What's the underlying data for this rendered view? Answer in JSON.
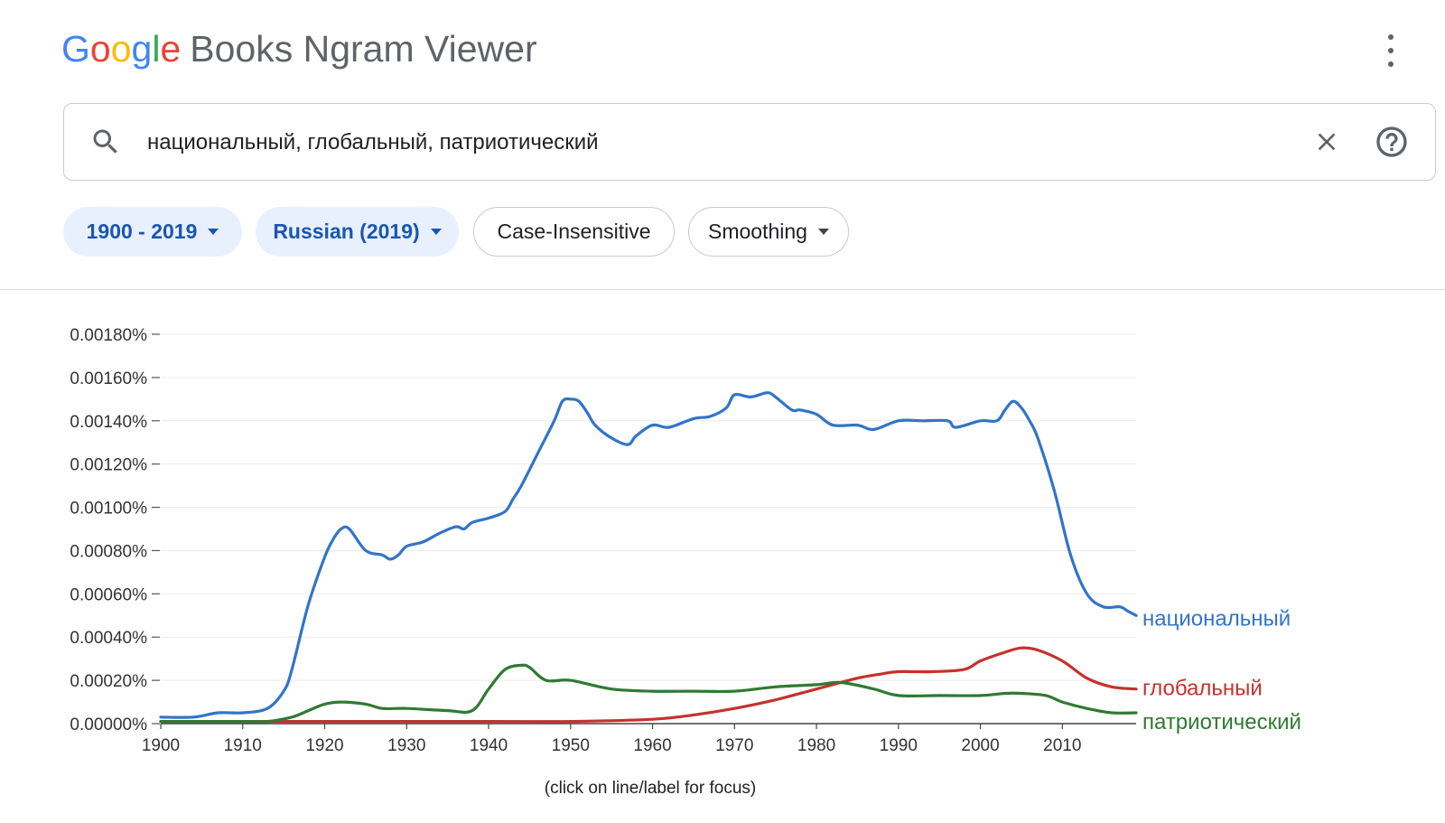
{
  "header": {
    "logo_letters": [
      {
        "ch": "G",
        "color": "#4285F4"
      },
      {
        "ch": "o",
        "color": "#EA4335"
      },
      {
        "ch": "o",
        "color": "#FBBC05"
      },
      {
        "ch": "g",
        "color": "#4285F4"
      },
      {
        "ch": "l",
        "color": "#34A853"
      },
      {
        "ch": "e",
        "color": "#EA4335"
      }
    ],
    "product_name": "Books Ngram Viewer",
    "menu_icon": "more-vert-icon"
  },
  "search": {
    "query": "национальный, глобальный, патриотический",
    "search_icon": "search-icon",
    "clear_icon": "close-icon",
    "help_icon": "help-icon"
  },
  "filters": {
    "year_range": "1900 - 2019",
    "corpus": "Russian (2019)",
    "case": "Case-Insensitive",
    "smoothing": "Smoothing"
  },
  "chart_caption": "(click on line/label for focus)",
  "chart_data": {
    "type": "line",
    "xlabel": "",
    "ylabel": "",
    "xlim": [
      1900,
      2019
    ],
    "ylim": [
      0,
      0.0018
    ],
    "x_ticks": [
      "1900",
      "1910",
      "1920",
      "1930",
      "1940",
      "1950",
      "1960",
      "1970",
      "1980",
      "1990",
      "2000",
      "2010"
    ],
    "y_ticks": [
      "0.00000%",
      "0.00020%",
      "0.00040%",
      "0.00060%",
      "0.00080%",
      "0.00100%",
      "0.00120%",
      "0.00140%",
      "0.00160%",
      "0.00180%"
    ],
    "grid": "horizontal",
    "legend": "labels at line ends (right)",
    "series": [
      {
        "name": "национальный",
        "color": "#3274c8",
        "x": [
          1900,
          1904,
          1907,
          1910,
          1913,
          1915,
          1916,
          1918,
          1920,
          1921,
          1922,
          1923,
          1925,
          1927,
          1928,
          1929,
          1930,
          1932,
          1934,
          1936,
          1937,
          1938,
          1940,
          1942,
          1943,
          1944,
          1946,
          1948,
          1949,
          1950,
          1951,
          1952,
          1953,
          1955,
          1957,
          1958,
          1960,
          1962,
          1965,
          1967,
          1969,
          1970,
          1972,
          1974,
          1975,
          1977,
          1978,
          1980,
          1982,
          1985,
          1987,
          1990,
          1993,
          1996,
          1997,
          2000,
          2002,
          2003,
          2004,
          2005,
          2006,
          2007,
          2009,
          2011,
          2013,
          2015,
          2017,
          2018,
          2019
        ],
        "y": [
          3e-05,
          3e-05,
          5e-05,
          5e-05,
          7e-05,
          0.00015,
          0.00025,
          0.00055,
          0.00077,
          0.00085,
          0.0009,
          0.0009,
          0.0008,
          0.00078,
          0.00076,
          0.00078,
          0.00082,
          0.00084,
          0.00088,
          0.00091,
          0.0009,
          0.00093,
          0.00095,
          0.00098,
          0.00104,
          0.0011,
          0.00125,
          0.0014,
          0.00149,
          0.0015,
          0.00149,
          0.00144,
          0.00138,
          0.00132,
          0.00129,
          0.00133,
          0.00138,
          0.00137,
          0.00141,
          0.00142,
          0.00146,
          0.00152,
          0.00151,
          0.00153,
          0.00151,
          0.00145,
          0.00145,
          0.00143,
          0.00138,
          0.00138,
          0.00136,
          0.0014,
          0.0014,
          0.0014,
          0.00137,
          0.0014,
          0.0014,
          0.00145,
          0.00149,
          0.00146,
          0.0014,
          0.00132,
          0.00108,
          0.00078,
          0.0006,
          0.00054,
          0.00054,
          0.00052,
          0.0005
        ]
      },
      {
        "name": "глобальный",
        "color": "#c5322c",
        "x": [
          1900,
          1920,
          1940,
          1950,
          1960,
          1965,
          1970,
          1975,
          1980,
          1985,
          1988,
          1990,
          1994,
          1998,
          2000,
          2003,
          2005,
          2007,
          2010,
          2013,
          2016,
          2019
        ],
        "y": [
          1e-05,
          1e-05,
          1e-05,
          1e-05,
          2e-05,
          4e-05,
          7e-05,
          0.00011,
          0.00016,
          0.00021,
          0.00023,
          0.00024,
          0.00024,
          0.00025,
          0.00029,
          0.00033,
          0.00035,
          0.00034,
          0.00029,
          0.00021,
          0.00017,
          0.00016
        ]
      },
      {
        "name": "патриотический",
        "color": "#2f7a32",
        "x": [
          1900,
          1910,
          1913,
          1916,
          1918,
          1920,
          1922,
          1925,
          1927,
          1930,
          1935,
          1938,
          1940,
          1942,
          1944,
          1945,
          1947,
          1950,
          1955,
          1960,
          1965,
          1970,
          1975,
          1980,
          1983,
          1987,
          1990,
          1995,
          2000,
          2003,
          2005,
          2008,
          2010,
          2013,
          2016,
          2019
        ],
        "y": [
          1e-05,
          1e-05,
          1e-05,
          3e-05,
          6e-05,
          9e-05,
          0.0001,
          9e-05,
          7e-05,
          7e-05,
          6e-05,
          6e-05,
          0.00016,
          0.00025,
          0.00027,
          0.00026,
          0.0002,
          0.0002,
          0.00016,
          0.00015,
          0.00015,
          0.00015,
          0.00017,
          0.00018,
          0.00019,
          0.00016,
          0.00013,
          0.00013,
          0.00013,
          0.00014,
          0.00014,
          0.00013,
          0.0001,
          7e-05,
          5e-05,
          5e-05
        ]
      }
    ]
  }
}
